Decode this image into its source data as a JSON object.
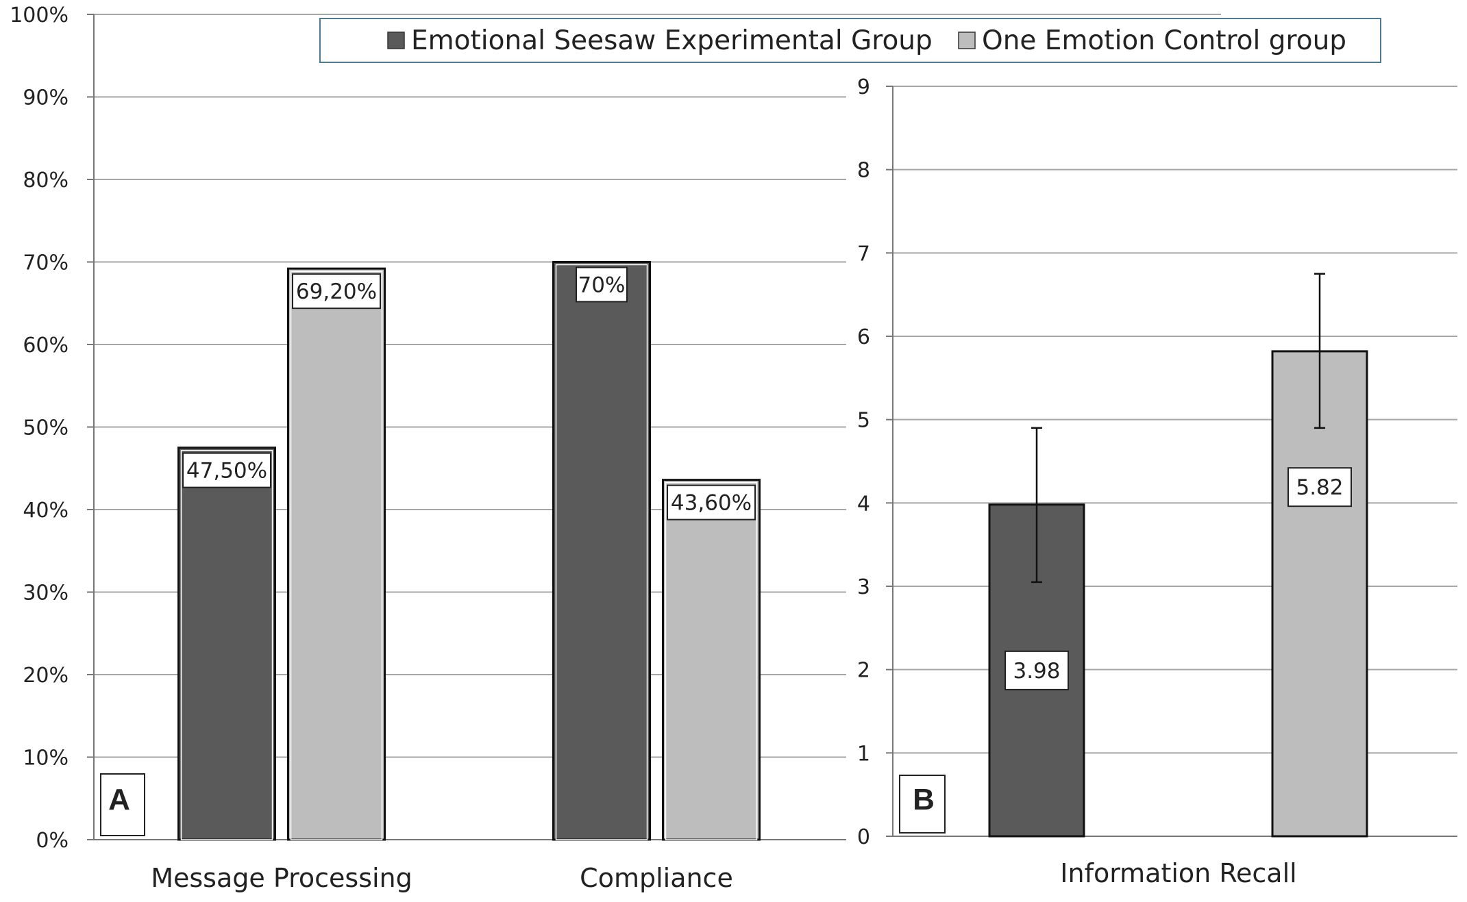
{
  "chart_data": [
    {
      "panel": "A",
      "type": "bar",
      "categories": [
        "Message Processing",
        "Compliance"
      ],
      "series": [
        {
          "name": "Emotional Seesaw Experimental Group",
          "values": [
            47.5,
            70
          ],
          "labels": [
            "47,50%",
            "70%"
          ]
        },
        {
          "name": "One Emotion Control group",
          "values": [
            69.2,
            43.6
          ],
          "labels": [
            "69,20%",
            "43,60%"
          ]
        }
      ],
      "ylim": [
        0,
        100
      ],
      "yticks": [
        0,
        10,
        20,
        30,
        40,
        50,
        60,
        70,
        80,
        90,
        100
      ],
      "ytick_labels": [
        "0%",
        "10%",
        "20%",
        "30%",
        "40%",
        "50%",
        "60%",
        "70%",
        "80%",
        "90%",
        "100%"
      ],
      "grid": true,
      "xlabel": "",
      "ylabel": ""
    },
    {
      "panel": "B",
      "type": "bar",
      "categories": [
        "Information Recall"
      ],
      "series": [
        {
          "name": "Emotional Seesaw Experimental Group",
          "values": [
            3.98
          ],
          "labels": [
            "3.98"
          ],
          "error_low": [
            3.05
          ],
          "error_high": [
            4.9
          ]
        },
        {
          "name": "One Emotion Control group",
          "values": [
            5.82
          ],
          "labels": [
            "5.82"
          ],
          "error_low": [
            4.9
          ],
          "error_high": [
            6.75
          ]
        }
      ],
      "ylim": [
        0,
        9
      ],
      "yticks": [
        0,
        1,
        2,
        3,
        4,
        5,
        6,
        7,
        8,
        9
      ],
      "ytick_labels": [
        "0",
        "1",
        "2",
        "3",
        "4",
        "5",
        "6",
        "7",
        "8",
        "9"
      ],
      "grid": true,
      "xlabel": "",
      "ylabel": ""
    }
  ],
  "legend": {
    "placement": "top",
    "items": [
      {
        "label": "Emotional Seesaw Experimental Group",
        "color": "#5a5a5a"
      },
      {
        "label": "One Emotion Control group",
        "color": "#bdbdbd"
      }
    ]
  },
  "colors": {
    "experimental": "#5a5a5a",
    "control": "#bdbdbd",
    "grid": "#a6a6a6",
    "legend_border": "#4f7a94"
  }
}
